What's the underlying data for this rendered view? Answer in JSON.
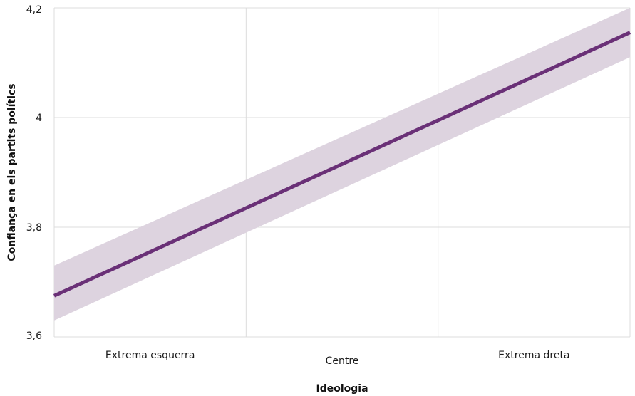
{
  "chart_data": {
    "type": "line",
    "title": "",
    "xlabel": "Ideologia",
    "ylabel": "Confiança en els partits polítics",
    "categories": [
      "Extrema esquerra",
      "Centre",
      "Extrema dreta"
    ],
    "x": [
      0,
      1,
      2
    ],
    "xlim": [
      0,
      3
    ],
    "ylim": [
      3.6,
      4.2
    ],
    "yticks": [
      3.6,
      3.8,
      4.0,
      4.2
    ],
    "ytick_labels": [
      "3,6",
      "3,8",
      "4",
      "4,2"
    ],
    "grid": true,
    "legend": "none",
    "series": [
      {
        "x": [
          0,
          3
        ],
        "values": [
          3.675,
          4.155
        ],
        "ci_lower": [
          3.63,
          4.11
        ],
        "ci_upper": [
          3.73,
          4.2
        ],
        "color": "#6a3077",
        "band_color": "#ddd3df"
      }
    ]
  }
}
